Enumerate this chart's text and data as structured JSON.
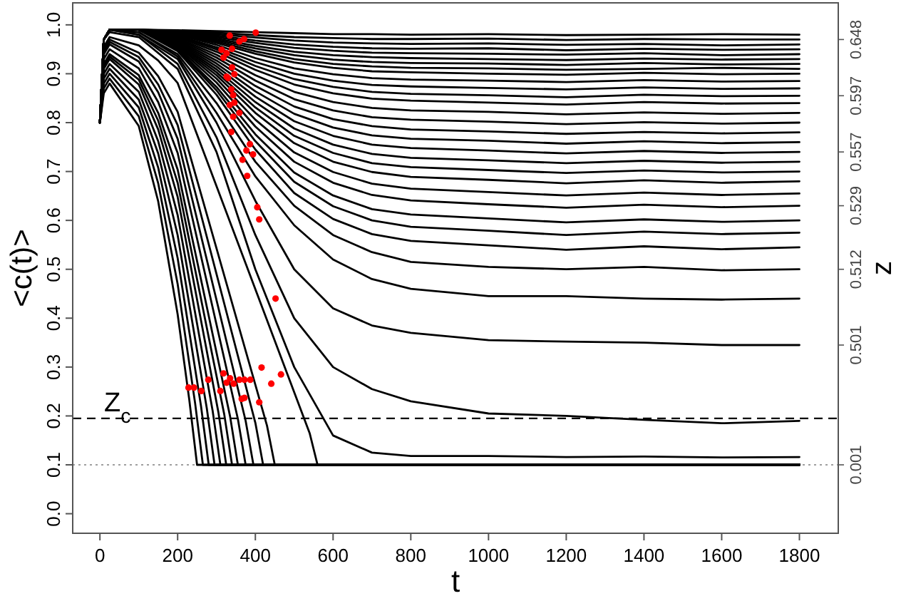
{
  "chart_data": {
    "type": "line",
    "xlabel": "t",
    "ylabel": "<c(t)>",
    "y2label": "z",
    "x": [
      0,
      10,
      25,
      100,
      200,
      300,
      400,
      500,
      600,
      700,
      800,
      1000,
      1200,
      1400,
      1600,
      1800
    ],
    "xlim": [
      -70,
      1900
    ],
    "ylim": [
      -0.04,
      1.045
    ],
    "xticks": [
      0,
      200,
      400,
      600,
      800,
      1000,
      1200,
      1400,
      1600,
      1800
    ],
    "yticks": [
      {
        "value": 0,
        "label": "0.0"
      },
      0.1,
      0.2,
      0.3,
      0.4,
      0.5,
      0.6,
      0.7,
      0.8,
      0.9,
      {
        "value": 1,
        "label": "1.0"
      }
    ],
    "ref_lines": [
      {
        "axis": "y",
        "value": 0.195,
        "label": "Z$_{c}$",
        "line_style": "dashed",
        "color": "#000000"
      },
      {
        "axis": "y",
        "value": 0.1,
        "line_style": "dotted",
        "color": "#808080"
      }
    ],
    "series": [
      {
        "color": "#000000",
        "values": [
          0.8,
          0.97,
          0.99,
          0.99,
          0.989,
          0.987,
          0.985,
          0.983,
          0.981,
          0.981,
          0.98,
          0.981,
          0.979,
          0.98,
          0.981,
          0.98
        ]
      },
      {
        "name": "0.648",
        "color": "#000000",
        "values": [
          0.8,
          0.97,
          0.99,
          0.99,
          0.988,
          0.984,
          0.979,
          0.975,
          0.973,
          0.971,
          0.971,
          0.972,
          0.969,
          0.971,
          0.97,
          0.97
        ]
      },
      {
        "color": "#000000",
        "values": [
          0.8,
          0.97,
          0.99,
          0.99,
          0.987,
          0.981,
          0.974,
          0.968,
          0.964,
          0.962,
          0.961,
          0.962,
          0.959,
          0.961,
          0.958,
          0.96
        ]
      },
      {
        "color": "#000000",
        "values": [
          0.8,
          0.97,
          0.99,
          0.99,
          0.986,
          0.978,
          0.968,
          0.96,
          0.955,
          0.952,
          0.951,
          0.952,
          0.948,
          0.951,
          0.949,
          0.95
        ]
      },
      {
        "color": "#000000",
        "values": [
          0.8,
          0.97,
          0.99,
          0.99,
          0.985,
          0.975,
          0.963,
          0.953,
          0.947,
          0.943,
          0.942,
          0.941,
          0.939,
          0.942,
          0.938,
          0.94
        ]
      },
      {
        "color": "#000000",
        "values": [
          0.8,
          0.97,
          0.99,
          0.99,
          0.984,
          0.972,
          0.957,
          0.945,
          0.938,
          0.934,
          0.932,
          0.93,
          0.928,
          0.931,
          0.929,
          0.93
        ]
      },
      {
        "color": "#000000",
        "values": [
          0.8,
          0.97,
          0.99,
          0.99,
          0.983,
          0.969,
          0.952,
          0.938,
          0.929,
          0.924,
          0.922,
          0.921,
          0.918,
          0.922,
          0.919,
          0.92
        ]
      },
      {
        "color": "#000000",
        "values": [
          0.8,
          0.97,
          0.99,
          0.99,
          0.982,
          0.966,
          0.946,
          0.93,
          0.92,
          0.915,
          0.912,
          0.911,
          0.908,
          0.91,
          0.912,
          0.91
        ]
      },
      {
        "color": "#000000",
        "values": [
          0.8,
          0.97,
          0.99,
          0.99,
          0.981,
          0.963,
          0.941,
          0.923,
          0.912,
          0.905,
          0.903,
          0.9,
          0.898,
          0.902,
          0.899,
          0.9
        ]
      },
      {
        "color": "#000000",
        "values": [
          0.8,
          0.97,
          0.99,
          0.99,
          0.98,
          0.959,
          0.932,
          0.911,
          0.899,
          0.891,
          0.888,
          0.886,
          0.883,
          0.887,
          0.884,
          0.885
        ]
      },
      {
        "color": "#000000",
        "values": [
          0.8,
          0.97,
          0.99,
          0.99,
          0.978,
          0.954,
          0.924,
          0.9,
          0.886,
          0.877,
          0.874,
          0.871,
          0.868,
          0.872,
          0.869,
          0.87
        ]
      },
      {
        "name": "0.597",
        "color": "#000000",
        "values": [
          0.8,
          0.97,
          0.99,
          0.99,
          0.977,
          0.95,
          0.916,
          0.889,
          0.873,
          0.863,
          0.859,
          0.856,
          0.852,
          0.857,
          0.854,
          0.855
        ]
      },
      {
        "color": "#000000",
        "values": [
          0.8,
          0.97,
          0.99,
          0.99,
          0.975,
          0.945,
          0.908,
          0.878,
          0.86,
          0.849,
          0.845,
          0.841,
          0.837,
          0.842,
          0.839,
          0.84
        ]
      },
      {
        "color": "#000000",
        "values": [
          0.8,
          0.97,
          0.99,
          0.99,
          0.973,
          0.939,
          0.897,
          0.863,
          0.842,
          0.83,
          0.825,
          0.822,
          0.817,
          0.821,
          0.818,
          0.82
        ]
      },
      {
        "color": "#000000",
        "values": [
          0.8,
          0.97,
          0.99,
          0.99,
          0.971,
          0.933,
          0.886,
          0.848,
          0.825,
          0.811,
          0.806,
          0.802,
          0.797,
          0.801,
          0.798,
          0.8
        ]
      },
      {
        "color": "#000000",
        "values": [
          0.8,
          0.97,
          0.99,
          0.99,
          0.969,
          0.927,
          0.875,
          0.833,
          0.807,
          0.793,
          0.786,
          0.782,
          0.777,
          0.781,
          0.778,
          0.78
        ]
      },
      {
        "color": "#000000",
        "values": [
          0.8,
          0.97,
          0.99,
          0.99,
          0.967,
          0.921,
          0.864,
          0.818,
          0.79,
          0.774,
          0.767,
          0.763,
          0.757,
          0.762,
          0.758,
          0.76
        ]
      },
      {
        "name": "0.557",
        "color": "#000000",
        "values": [
          0.8,
          0.97,
          0.99,
          0.99,
          0.965,
          0.915,
          0.853,
          0.803,
          0.773,
          0.755,
          0.748,
          0.743,
          0.737,
          0.742,
          0.738,
          0.74
        ]
      },
      {
        "color": "#000000",
        "values": [
          0.8,
          0.97,
          0.99,
          0.99,
          0.963,
          0.909,
          0.842,
          0.788,
          0.755,
          0.736,
          0.728,
          0.723,
          0.717,
          0.722,
          0.718,
          0.72
        ]
      },
      {
        "color": "#000000",
        "values": [
          0.8,
          0.97,
          0.99,
          0.99,
          0.961,
          0.903,
          0.831,
          0.773,
          0.738,
          0.717,
          0.709,
          0.703,
          0.697,
          0.702,
          0.698,
          0.7
        ]
      },
      {
        "color": "#000000",
        "values": [
          0.8,
          0.97,
          0.99,
          0.99,
          0.959,
          0.897,
          0.82,
          0.758,
          0.72,
          0.699,
          0.689,
          0.683,
          0.676,
          0.682,
          0.677,
          0.68
        ]
      },
      {
        "color": "#000000",
        "values": [
          0.8,
          0.97,
          0.99,
          0.99,
          0.957,
          0.89,
          0.806,
          0.739,
          0.699,
          0.675,
          0.665,
          0.658,
          0.651,
          0.657,
          0.652,
          0.655
        ]
      },
      {
        "name": "0.529",
        "color": "#000000",
        "values": [
          0.8,
          0.97,
          0.99,
          0.99,
          0.954,
          0.882,
          0.792,
          0.72,
          0.677,
          0.652,
          0.641,
          0.633,
          0.626,
          0.632,
          0.627,
          0.63
        ]
      },
      {
        "color": "#000000",
        "values": [
          0.8,
          0.97,
          0.99,
          0.99,
          0.951,
          0.873,
          0.776,
          0.698,
          0.651,
          0.623,
          0.612,
          0.604,
          0.596,
          0.602,
          0.597,
          0.6
        ]
      },
      {
        "color": "#000000",
        "values": [
          0.8,
          0.97,
          0.99,
          0.99,
          0.949,
          0.866,
          0.762,
          0.679,
          0.629,
          0.6,
          0.587,
          0.579,
          0.57,
          0.577,
          0.572,
          0.575
        ]
      },
      {
        "color": "#000000",
        "values": [
          0.8,
          0.97,
          0.99,
          0.99,
          0.946,
          0.857,
          0.745,
          0.656,
          0.603,
          0.572,
          0.558,
          0.549,
          0.54,
          0.547,
          0.541,
          0.545
        ]
      },
      {
        "name": "0.512",
        "color": "#000000",
        "values": [
          0.8,
          0.97,
          0.99,
          0.985,
          0.94,
          0.84,
          0.72,
          0.63,
          0.57,
          0.535,
          0.515,
          0.505,
          0.5,
          0.505,
          0.498,
          0.5
        ]
      },
      {
        "color": "#000000",
        "values": [
          0.8,
          0.97,
          0.99,
          0.985,
          0.935,
          0.82,
          0.69,
          0.59,
          0.52,
          0.48,
          0.46,
          0.445,
          0.445,
          0.44,
          0.438,
          0.44
        ]
      },
      {
        "name": "0.501",
        "color": "#000000",
        "values": [
          0.8,
          0.97,
          0.99,
          0.98,
          0.93,
          0.8,
          0.64,
          0.5,
          0.42,
          0.385,
          0.37,
          0.355,
          0.352,
          0.35,
          0.345,
          0.345
        ]
      },
      {
        "color": "#000000",
        "values": [
          0.8,
          0.97,
          0.99,
          0.98,
          0.92,
          0.77,
          0.57,
          0.4,
          0.3,
          0.255,
          0.23,
          0.205,
          0.2,
          0.192,
          0.185,
          0.19
        ]
      },
      {
        "color": "#000000",
        "values": [
          0.8,
          0.97,
          0.985,
          0.975,
          0.91,
          0.74,
          0.5,
          0.3,
          0.16,
          0.125,
          0.118,
          0.118,
          0.116,
          0.117,
          0.115,
          0.116
        ]
      },
      {
        "name": "0.001",
        "color": "#000000",
        "x": [
          0,
          10,
          25,
          100,
          150,
          200,
          230,
          250,
          1800
        ],
        "values": [
          0.8,
          0.86,
          0.88,
          0.793,
          0.639,
          0.408,
          0.233,
          0.1,
          0.1
        ]
      },
      {
        "color": "#000000",
        "x": [
          0,
          10,
          25,
          100,
          150,
          200,
          245,
          265,
          1800
        ],
        "values": [
          0.8,
          0.87,
          0.89,
          0.813,
          0.676,
          0.47,
          0.226,
          0.1,
          0.1
        ]
      },
      {
        "color": "#000000",
        "x": [
          0,
          10,
          25,
          100,
          150,
          200,
          260,
          280,
          1800
        ],
        "values": [
          0.8,
          0.88,
          0.9,
          0.831,
          0.708,
          0.523,
          0.221,
          0.1,
          0.1
        ]
      },
      {
        "color": "#000000",
        "x": [
          0,
          10,
          25,
          100,
          150,
          200,
          275,
          295,
          1800
        ],
        "values": [
          0.8,
          0.89,
          0.91,
          0.847,
          0.737,
          0.57,
          0.216,
          0.1,
          0.1
        ]
      },
      {
        "color": "#000000",
        "x": [
          0,
          10,
          25,
          100,
          150,
          200,
          290,
          310,
          1800
        ],
        "values": [
          0.8,
          0.9,
          0.92,
          0.863,
          0.762,
          0.611,
          0.211,
          0.1,
          0.1
        ]
      },
      {
        "color": "#000000",
        "x": [
          0,
          10,
          25,
          100,
          150,
          200,
          305,
          325,
          1800
        ],
        "values": [
          0.8,
          0.91,
          0.93,
          0.878,
          0.786,
          0.648,
          0.207,
          0.1,
          0.1
        ]
      },
      {
        "color": "#000000",
        "x": [
          0,
          10,
          25,
          100,
          150,
          200,
          320,
          340,
          1800
        ],
        "values": [
          0.8,
          0.915,
          0.935,
          0.888,
          0.804,
          0.677,
          0.203,
          0.1,
          0.1
        ]
      },
      {
        "color": "#000000",
        "x": [
          0,
          10,
          25,
          100,
          150,
          200,
          335,
          355,
          1800
        ],
        "values": [
          0.8,
          0.92,
          0.94,
          0.897,
          0.82,
          0.704,
          0.199,
          0.1,
          0.1
        ]
      },
      {
        "color": "#000000",
        "x": [
          0,
          10,
          25,
          100,
          150,
          200,
          355,
          375,
          1800
        ],
        "values": [
          0.8,
          0.93,
          0.95,
          0.911,
          0.842,
          0.738,
          0.194,
          0.1,
          0.1
        ]
      },
      {
        "color": "#000000",
        "x": [
          0,
          10,
          25,
          100,
          150,
          200,
          375,
          395,
          1800
        ],
        "values": [
          0.8,
          0.94,
          0.96,
          0.925,
          0.862,
          0.767,
          0.19,
          0.1,
          0.1
        ]
      },
      {
        "color": "#000000",
        "x": [
          0,
          10,
          25,
          100,
          150,
          200,
          400,
          420,
          1800
        ],
        "values": [
          0.8,
          0.945,
          0.965,
          0.934,
          0.878,
          0.795,
          0.186,
          0.1,
          0.1
        ]
      },
      {
        "color": "#000000",
        "x": [
          0,
          10,
          25,
          100,
          150,
          200,
          430,
          450,
          1800
        ],
        "values": [
          0.8,
          0.95,
          0.97,
          0.943,
          0.895,
          0.822,
          0.18,
          0.1,
          0.1
        ]
      },
      {
        "color": "#000000",
        "x": [
          0,
          10,
          25,
          100,
          150,
          200,
          540,
          560,
          1800
        ],
        "values": [
          0.8,
          0.955,
          0.975,
          0.958,
          0.927,
          0.881,
          0.164,
          0.1,
          0.1
        ]
      },
      {
        "type": "scatter",
        "marker": "circle",
        "color": "#ff0000",
        "x": [
          401,
          334,
          371,
          359,
          313,
          326,
          318,
          340,
          340,
          326,
          346,
          330,
          338,
          343,
          334,
          346,
          359,
          343,
          338,
          386,
          377,
          394,
          367,
          379,
          405,
          410,
          452,
          228,
          242,
          261,
          279,
          310,
          318,
          326,
          335,
          344,
          359,
          372,
          387,
          416,
          466,
          441,
          365,
          372,
          410
        ],
        "values": [
          0.984,
          0.978,
          0.971,
          0.966,
          0.949,
          0.942,
          0.933,
          0.951,
          0.913,
          0.894,
          0.899,
          0.891,
          0.868,
          0.856,
          0.836,
          0.841,
          0.82,
          0.812,
          0.781,
          0.756,
          0.743,
          0.735,
          0.724,
          0.691,
          0.627,
          0.602,
          0.44,
          0.258,
          0.258,
          0.251,
          0.274,
          0.251,
          0.287,
          0.268,
          0.277,
          0.266,
          0.274,
          0.274,
          0.274,
          0.299,
          0.285,
          0.266,
          0.235,
          0.237,
          0.228
        ]
      }
    ]
  }
}
